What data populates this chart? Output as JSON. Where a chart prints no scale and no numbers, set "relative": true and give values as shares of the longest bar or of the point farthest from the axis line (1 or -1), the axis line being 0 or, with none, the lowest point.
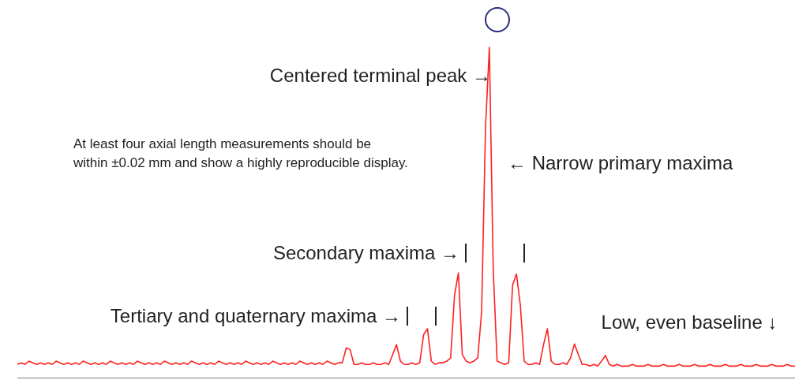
{
  "chart_data": {
    "type": "line",
    "relative": true,
    "color": "#ff2020",
    "marker": "none",
    "line_style": "solid",
    "grid": false,
    "legend": false,
    "categories": [
      null,
      null,
      null,
      null,
      null,
      null,
      null,
      null,
      null,
      null,
      null,
      null,
      null,
      null,
      null,
      null,
      null,
      null,
      null,
      null,
      null,
      null,
      null,
      null,
      null,
      null,
      null,
      null,
      null,
      null,
      null,
      null,
      null,
      null,
      null,
      null,
      null,
      null,
      null,
      null,
      null,
      null,
      null,
      null,
      null,
      null,
      null,
      null,
      null,
      null,
      null,
      null,
      null,
      null,
      null,
      null,
      null,
      null,
      null,
      null,
      null,
      null,
      null,
      null,
      null,
      null,
      null,
      null,
      null,
      null,
      null,
      null,
      null,
      null,
      null,
      null,
      null,
      null,
      null,
      null,
      null,
      null,
      null,
      null,
      null,
      null,
      null,
      null,
      null,
      null,
      null,
      null,
      null,
      null,
      null,
      null,
      null,
      null,
      null,
      null,
      null,
      null,
      null,
      null,
      null,
      null,
      null,
      null,
      null,
      null,
      null,
      null,
      null,
      null,
      null,
      null,
      null,
      null,
      null,
      null,
      null,
      null,
      null,
      null,
      null,
      null,
      null,
      null,
      null,
      null,
      null,
      null,
      null,
      null,
      null,
      null,
      null,
      null,
      null,
      null,
      null,
      null,
      null,
      null,
      null,
      null,
      null,
      null,
      null,
      null,
      null,
      null,
      null,
      null,
      null,
      null,
      null,
      null,
      null,
      null,
      null,
      null,
      null,
      null,
      null,
      null,
      null,
      null,
      null,
      null,
      null,
      null,
      null,
      null,
      null,
      null,
      null,
      null,
      null,
      null,
      null,
      null,
      null,
      null,
      null,
      null,
      null,
      null,
      null,
      null,
      null,
      null,
      null,
      null,
      null,
      null,
      null,
      null,
      null,
      null,
      null,
      null
    ],
    "values": [
      0.04,
      0.045,
      0.04,
      0.05,
      0.045,
      0.04,
      0.045,
      0.04,
      0.045,
      0.04,
      0.05,
      0.045,
      0.04,
      0.045,
      0.04,
      0.045,
      0.04,
      0.05,
      0.045,
      0.04,
      0.045,
      0.04,
      0.045,
      0.04,
      0.05,
      0.045,
      0.04,
      0.045,
      0.04,
      0.045,
      0.04,
      0.05,
      0.045,
      0.04,
      0.045,
      0.04,
      0.045,
      0.04,
      0.05,
      0.045,
      0.04,
      0.045,
      0.04,
      0.045,
      0.04,
      0.05,
      0.045,
      0.04,
      0.045,
      0.04,
      0.045,
      0.04,
      0.05,
      0.045,
      0.04,
      0.045,
      0.04,
      0.045,
      0.04,
      0.05,
      0.045,
      0.04,
      0.045,
      0.04,
      0.045,
      0.04,
      0.05,
      0.045,
      0.04,
      0.045,
      0.04,
      0.045,
      0.04,
      0.05,
      0.045,
      0.04,
      0.045,
      0.04,
      0.045,
      0.04,
      0.05,
      0.045,
      0.04,
      0.045,
      0.045,
      0.09,
      0.085,
      0.04,
      0.04,
      0.045,
      0.04,
      0.04,
      0.045,
      0.04,
      0.04,
      0.045,
      0.04,
      0.07,
      0.1,
      0.05,
      0.04,
      0.04,
      0.045,
      0.04,
      0.045,
      0.13,
      0.148,
      0.05,
      0.04,
      0.045,
      0.045,
      0.05,
      0.06,
      0.25,
      0.317,
      0.07,
      0.05,
      0.045,
      0.05,
      0.06,
      0.2,
      0.755,
      1,
      0.326,
      0.05,
      0.045,
      0.04,
      0.045,
      0.28,
      0.314,
      0.22,
      0.05,
      0.04,
      0.04,
      0.045,
      0.04,
      0.1,
      0.148,
      0.05,
      0.04,
      0.04,
      0.045,
      0.04,
      0.06,
      0.102,
      0.07,
      0.04,
      0.04,
      0.035,
      0.04,
      0.035,
      0.05,
      0.067,
      0.04,
      0.035,
      0.04,
      0.035,
      0.035,
      0.035,
      0.04,
      0.035,
      0.035,
      0.035,
      0.04,
      0.035,
      0.035,
      0.035,
      0.04,
      0.035,
      0.035,
      0.035,
      0.04,
      0.035,
      0.035,
      0.035,
      0.04,
      0.035,
      0.035,
      0.035,
      0.04,
      0.035,
      0.035,
      0.035,
      0.04,
      0.035,
      0.035,
      0.035,
      0.04,
      0.035,
      0.035,
      0.035,
      0.04,
      0.035,
      0.035,
      0.035,
      0.04,
      0.035,
      0.035,
      0.035,
      0.04,
      0.035,
      0.035
    ],
    "annotations": [
      "Centered terminal peak →",
      "← Narrow primary maxima",
      "At least four axial length measurements should be within ±0.02 mm and show a highly reproducible display.",
      "Secondary maxima →",
      "Tertiary and quaternary maxima →",
      "Low, even baseline ↓"
    ]
  }
}
